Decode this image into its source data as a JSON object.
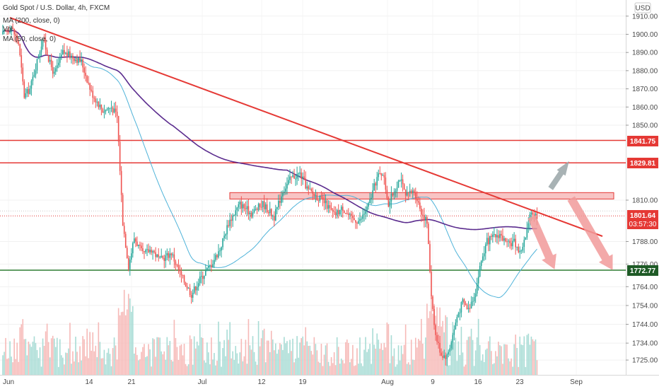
{
  "header": {
    "title": "Gold Spot / U.S. Dollar, 4h, FXCM",
    "indicator_1": "MA (200, close, 0)",
    "indicator_2": "Vol",
    "indicator_3": "MA (50, close, 0)",
    "currency": "USD"
  },
  "colors": {
    "up": "#26a69a",
    "down": "#ef5350",
    "trendline": "#e53935",
    "resistance": "#e53935",
    "support": "#2e7d32",
    "ma200": "#5b2c8e",
    "ma50": "#4fb3d9",
    "zone_fill": "#f8c4c4",
    "current_price": "#e53935",
    "arrow_up": "#9aa5a8",
    "arrow_down": "#f29b9b"
  },
  "chart_data": {
    "type": "candlestick",
    "title": "Gold Spot / U.S. Dollar, 4h, FXCM",
    "xlabel": "",
    "ylabel": "",
    "x_ticks": [
      "Jun",
      "14",
      "21",
      "Jul",
      "12",
      "19",
      "Aug",
      "9",
      "16",
      "23",
      "Sep"
    ],
    "y_ticks": [
      1910,
      1900,
      1890,
      1880,
      1870,
      1860,
      1850,
      1810,
      1788,
      1776,
      1764,
      1754,
      1744,
      1734,
      1725
    ],
    "y_tick_labels": [
      "1910.00",
      "1900.00",
      "1890.00",
      "1880.00",
      "1870.00",
      "1860.00",
      "1850.00",
      "1810.00",
      "1788.00",
      "1776.00",
      "1764.00",
      "1754.00",
      "1744.00",
      "1734.00",
      "1725.00"
    ],
    "levels": {
      "resistance_1": 1841.75,
      "resistance_2": 1829.81,
      "support": 1772.77,
      "resistance_zone": [
        1810.6,
        1814.0
      ]
    },
    "level_labels": [
      "1841.75",
      "1829.81",
      "1772.77"
    ],
    "current_price": 1801.64,
    "current_price_label": "1801.64",
    "countdown": "03:57:30",
    "price_keypoints": [
      [
        0,
        1900
      ],
      [
        6,
        1904
      ],
      [
        11,
        1895
      ],
      [
        15,
        1866
      ],
      [
        19,
        1870
      ],
      [
        23,
        1882
      ],
      [
        28,
        1898
      ],
      [
        33,
        1884
      ],
      [
        36,
        1878
      ],
      [
        42,
        1890
      ],
      [
        48,
        1888
      ],
      [
        55,
        1885
      ],
      [
        62,
        1868
      ],
      [
        70,
        1858
      ],
      [
        76,
        1860
      ],
      [
        80,
        1855
      ],
      [
        84,
        1798
      ],
      [
        88,
        1775
      ],
      [
        92,
        1790
      ],
      [
        98,
        1781
      ],
      [
        104,
        1784
      ],
      [
        110,
        1778
      ],
      [
        118,
        1782
      ],
      [
        124,
        1771
      ],
      [
        132,
        1760
      ],
      [
        138,
        1768
      ],
      [
        146,
        1776
      ],
      [
        152,
        1784
      ],
      [
        158,
        1798
      ],
      [
        166,
        1808
      ],
      [
        174,
        1803
      ],
      [
        182,
        1808
      ],
      [
        190,
        1801
      ],
      [
        196,
        1815
      ],
      [
        202,
        1822
      ],
      [
        208,
        1824
      ],
      [
        214,
        1815
      ],
      [
        220,
        1812
      ],
      [
        226,
        1808
      ],
      [
        232,
        1802
      ],
      [
        238,
        1806
      ],
      [
        244,
        1800
      ],
      [
        250,
        1799
      ],
      [
        256,
        1807
      ],
      [
        262,
        1822
      ],
      [
        266,
        1825
      ],
      [
        270,
        1808
      ],
      [
        274,
        1815
      ],
      [
        278,
        1822
      ],
      [
        282,
        1812
      ],
      [
        288,
        1815
      ],
      [
        293,
        1804
      ],
      [
        297,
        1798
      ],
      [
        300,
        1760
      ],
      [
        303,
        1738
      ],
      [
        307,
        1728
      ],
      [
        311,
        1727
      ],
      [
        314,
        1735
      ],
      [
        318,
        1748
      ],
      [
        322,
        1756
      ],
      [
        326,
        1752
      ],
      [
        331,
        1762
      ],
      [
        335,
        1778
      ],
      [
        339,
        1788
      ],
      [
        343,
        1790
      ],
      [
        348,
        1792
      ],
      [
        353,
        1786
      ],
      [
        358,
        1788
      ],
      [
        362,
        1782
      ],
      [
        366,
        1790
      ],
      [
        370,
        1804
      ],
      [
        374,
        1801.6
      ]
    ]
  }
}
